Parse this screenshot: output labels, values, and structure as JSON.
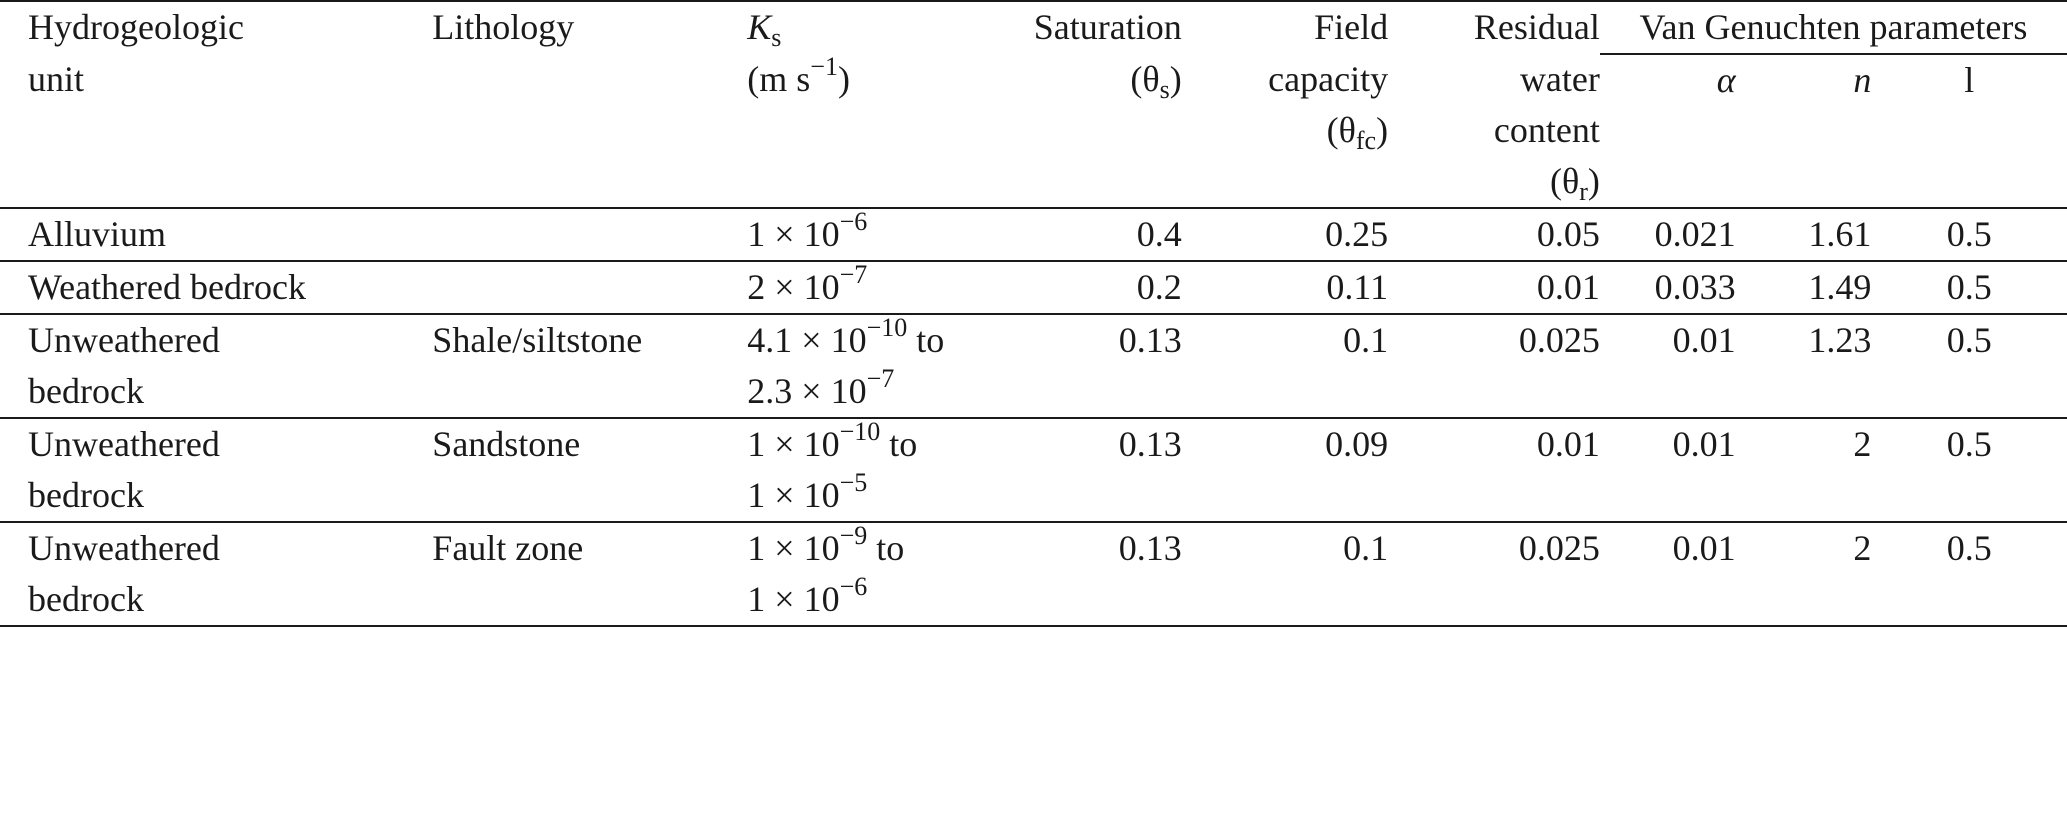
{
  "header": {
    "unit_line1": "Hydrogeologic",
    "unit_line2": "unit",
    "lithology": "Lithology",
    "ks_symbol": "K",
    "ks_sub": "s",
    "ks_units_open": "(m s",
    "ks_units_exp": "−1",
    "ks_units_close": ")",
    "sat_line1": "Saturation",
    "sat_line2_open": "(θ",
    "sat_line2_sub": "s",
    "sat_line2_close": ")",
    "fc_line1": "Field",
    "fc_line2": "capacity",
    "fc_line3_open": "(θ",
    "fc_line3_sub": "fc",
    "fc_line3_close": ")",
    "res_line1": "Residual",
    "res_line2": "water",
    "res_line3": "content",
    "res_line4_open": "(θ",
    "res_line4_sub": "r",
    "res_line4_close": ")",
    "vg_group": "Van Genuchten parameters",
    "vg_alpha": "α",
    "vg_n": "n",
    "vg_l": "l"
  },
  "rows": [
    {
      "unit_line1": "Alluvium",
      "unit_line2": "",
      "lithology": "",
      "ks_line1_mant": "1 × 10",
      "ks_line1_exp": "−6",
      "ks_line1_tail": "",
      "ks_line2_mant": "",
      "ks_line2_exp": "",
      "sat": "0.4",
      "fc": "0.25",
      "res": "0.05",
      "alpha": "0.021",
      "n": "1.61",
      "l": "0.5"
    },
    {
      "unit_line1": "Weathered bedrock",
      "unit_line2": "",
      "lithology": "",
      "ks_line1_mant": "2 × 10",
      "ks_line1_exp": "−7",
      "ks_line1_tail": "",
      "ks_line2_mant": "",
      "ks_line2_exp": "",
      "sat": "0.2",
      "fc": "0.11",
      "res": "0.01",
      "alpha": "0.033",
      "n": "1.49",
      "l": "0.5"
    },
    {
      "unit_line1": "Unweathered",
      "unit_line2": "bedrock",
      "lithology": "Shale/siltstone",
      "ks_line1_mant": "4.1 × 10",
      "ks_line1_exp": "−10",
      "ks_line1_tail": " to",
      "ks_line2_mant": "2.3 × 10",
      "ks_line2_exp": "−7",
      "sat": "0.13",
      "fc": "0.1",
      "res": "0.025",
      "alpha": "0.01",
      "n": "1.23",
      "l": "0.5"
    },
    {
      "unit_line1": "Unweathered",
      "unit_line2": "bedrock",
      "lithology": "Sandstone",
      "ks_line1_mant": "1 × 10",
      "ks_line1_exp": "−10",
      "ks_line1_tail": " to",
      "ks_line2_mant": "1 × 10",
      "ks_line2_exp": "−5",
      "sat": "0.13",
      "fc": "0.09",
      "res": "0.01",
      "alpha": "0.01",
      "n": "2",
      "l": "0.5"
    },
    {
      "unit_line1": "Unweathered",
      "unit_line2": "bedrock",
      "lithology": "Fault zone",
      "ks_line1_mant": "1 × 10",
      "ks_line1_exp": "−9",
      "ks_line1_tail": " to",
      "ks_line2_mant": "1 × 10",
      "ks_line2_exp": "−6",
      "sat": "0.13",
      "fc": "0.1",
      "res": "0.025",
      "alpha": "0.01",
      "n": "2",
      "l": "0.5"
    }
  ]
}
